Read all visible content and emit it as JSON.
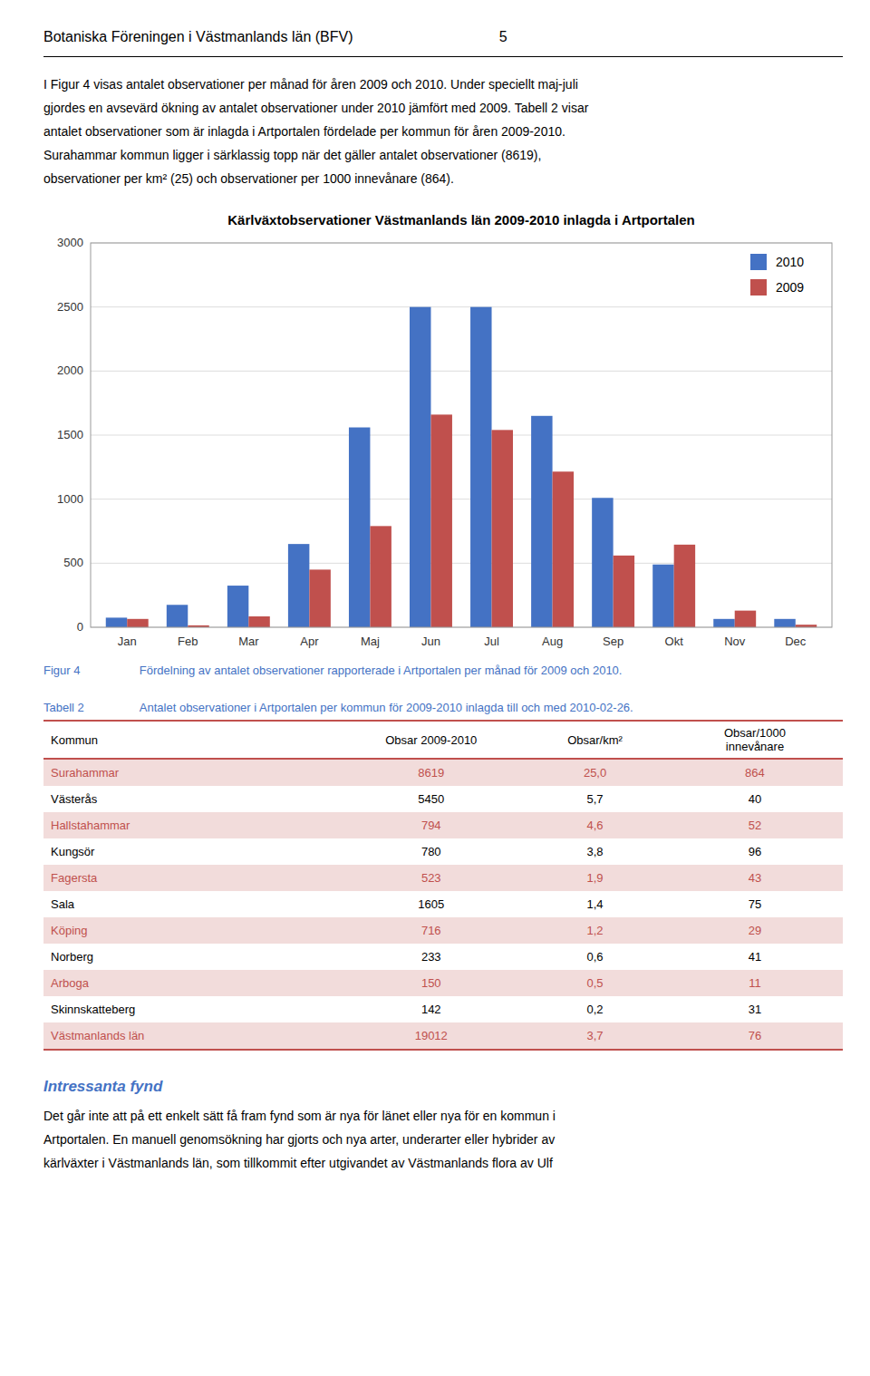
{
  "header_left": "Botaniska Föreningen i Västmanlands län (BFV)",
  "header_right": "5",
  "intro_text": "I Figur 4 visas antalet observationer per månad för åren 2009 och 2010. Under speciellt maj-juli\ngjordes en avsevärd ökning av antalet observationer under 2010 jämfört med 2009. Tabell 2 visar\nantalet observationer som är inlagda i Artportalen fördelade per kommun för åren 2009-2010.\nSurahammar kommun ligger i särklassig topp när det gäller antalet observationer (8619),\nobservationer per km² (25) och observationer per 1000 innevånare (864).",
  "chart_data": {
    "type": "bar",
    "title": "Kärlväxtobservationer Västmanlands län 2009-2010 inlagda i Artportalen",
    "categories": [
      "Jan",
      "Feb",
      "Mar",
      "Apr",
      "Maj",
      "Jun",
      "Jul",
      "Aug",
      "Sep",
      "Okt",
      "Nov",
      "Dec"
    ],
    "series": [
      {
        "name": "2010",
        "color": "#4472C4",
        "values": [
          75,
          175,
          325,
          650,
          1560,
          2500,
          2500,
          1650,
          1010,
          490,
          65,
          65
        ]
      },
      {
        "name": "2009",
        "color": "#C0504D",
        "values": [
          65,
          15,
          85,
          450,
          790,
          1660,
          1540,
          1215,
          560,
          645,
          130,
          20
        ]
      }
    ],
    "ylim": [
      0,
      3000
    ],
    "yticks": [
      0,
      500,
      1000,
      1500,
      2000,
      2500,
      3000
    ],
    "grid": true,
    "legend": "upper right"
  },
  "figure_caption": {
    "label": "Figur 4",
    "text": "Fördelning av antalet observationer rapporterade i Artportalen per månad för 2009 och 2010.",
    "color": "#4472C4"
  },
  "table": {
    "label": "Tabell 2",
    "caption": "Antalet observationer i Artportalen per kommun för 2009-2010 inlagda till och med 2010-02-26.",
    "label_color": "#4472C4",
    "headers": [
      "Kommun",
      "Obsar 2009-2010",
      "Obsar/km²",
      "Obsar/1000\ninnevånare"
    ],
    "rows": [
      [
        "Surahammar",
        "8619",
        "25,0",
        "864"
      ],
      [
        "Västerås",
        "5450",
        "5,7",
        "40"
      ],
      [
        "Hallstahammar",
        "794",
        "4,6",
        "52"
      ],
      [
        "Kungsör",
        "780",
        "3,8",
        "96"
      ],
      [
        "Fagersta",
        "523",
        "1,9",
        "43"
      ],
      [
        "Sala",
        "1605",
        "1,4",
        "75"
      ],
      [
        "Köping",
        "716",
        "1,2",
        "29"
      ],
      [
        "Norberg",
        "233",
        "0,6",
        "41"
      ],
      [
        "Arboga",
        "150",
        "0,5",
        "11"
      ],
      [
        "Skinnskatteberg",
        "142",
        "0,2",
        "31"
      ],
      [
        "Västmanlands län",
        "19012",
        "3,7",
        "76"
      ]
    ],
    "highlighted": [
      true,
      false,
      true,
      false,
      true,
      false,
      true,
      false,
      true,
      false,
      true
    ],
    "highlight_color": "#F2DCDB",
    "normal_color": "#FFFFFF",
    "highlight_text_color": "#C0504D",
    "normal_text_color": "#000000",
    "border_color": "#C0504D"
  },
  "bottom_heading": "Intressanta fynd",
  "bottom_heading_color": "#4472C4",
  "bottom_text": "Det går inte att på ett enkelt sätt få fram fynd som är nya för länet eller nya för en kommun i\nArtportalen. En manuell genomsökning har gjorts och nya arter, underarter eller hybrider av\nkärlväxter i Västmanlands län, som tillkommit efter utgivandet av Västmanlands flora av Ulf"
}
